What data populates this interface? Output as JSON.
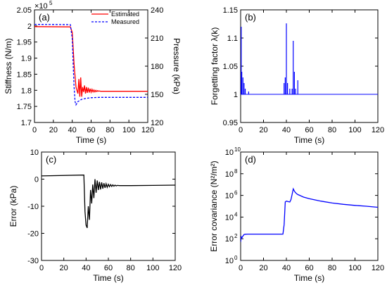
{
  "chart_data": [
    {
      "type": "line",
      "panel_label": "(a)",
      "xlabel": "Time (s)",
      "ylabel": "Stiffness (N/m)",
      "ylabel_right": "Pressure (kPa)",
      "xlim": [
        0,
        120
      ],
      "ylim": [
        1.7,
        2.05
      ],
      "ylim_right": [
        120,
        240
      ],
      "y_exponent_label": "×10",
      "y_exponent": "5",
      "xticks": [
        "0",
        "20",
        "40",
        "60",
        "80",
        "100",
        "120"
      ],
      "yticks": [
        "1.7",
        "1.75",
        "1.8",
        "1.85",
        "1.9",
        "1.95",
        "2",
        "2.05"
      ],
      "yticks_right": [
        "120",
        "150",
        "180",
        "210",
        "240"
      ],
      "legend_position": "top-right",
      "series": [
        {
          "name": "Estimated",
          "color": "#ff0000",
          "style": "solid",
          "x": [
            0,
            38,
            40,
            41,
            42,
            44,
            46,
            47,
            48,
            49,
            50,
            51,
            52,
            53,
            54,
            55,
            56,
            57,
            58,
            59,
            60,
            61,
            62,
            63,
            64,
            65,
            66,
            67,
            68,
            69,
            70,
            72,
            74,
            76,
            78,
            80,
            90,
            100,
            110,
            120
          ],
          "y": [
            1.998,
            1.997,
            1.98,
            1.93,
            1.88,
            1.81,
            1.79,
            1.835,
            1.78,
            1.84,
            1.78,
            1.81,
            1.795,
            1.815,
            1.79,
            1.81,
            1.792,
            1.808,
            1.793,
            1.805,
            1.794,
            1.803,
            1.795,
            1.801,
            1.795,
            1.8,
            1.796,
            1.799,
            1.797,
            1.798,
            1.797,
            1.797,
            1.797,
            1.797,
            1.797,
            1.797,
            1.797,
            1.797,
            1.797,
            1.797
          ]
        },
        {
          "name": "Measured",
          "color": "#0000ff",
          "style": "dashed",
          "x": [
            0,
            38,
            40,
            41,
            42,
            43,
            44,
            46,
            50,
            55,
            60,
            70,
            120
          ],
          "y": [
            2.005,
            2.004,
            1.96,
            1.88,
            1.81,
            1.765,
            1.755,
            1.765,
            1.772,
            1.775,
            1.777,
            1.778,
            1.778
          ]
        }
      ]
    },
    {
      "type": "line",
      "panel_label": "(b)",
      "xlabel": "Time (s)",
      "ylabel": "Forgetting factor λ(k)",
      "xlim": [
        0,
        120
      ],
      "ylim": [
        0.95,
        1.15
      ],
      "xticks": [
        "0",
        "20",
        "40",
        "60",
        "80",
        "100",
        "120"
      ],
      "yticks": [
        "0.95",
        "1",
        "1.05",
        "1.1",
        "1.15"
      ],
      "series": [
        {
          "color": "#0000ff",
          "style": "spikes",
          "baseline": 1.0,
          "spikes": [
            [
              0.5,
              1.12
            ],
            [
              1,
              1.04
            ],
            [
              2,
              1.03
            ],
            [
              3,
              1.02
            ],
            [
              4,
              1.01
            ],
            [
              7,
              1.005
            ],
            [
              38,
              1.02
            ],
            [
              39,
              1.03
            ],
            [
              40,
              1.126
            ],
            [
              41,
              1.02
            ],
            [
              43,
              1.01
            ],
            [
              45,
              1.01
            ],
            [
              46,
              1.095
            ],
            [
              47,
              1.04
            ],
            [
              48,
              1.01
            ],
            [
              50,
              1.025
            ]
          ]
        }
      ]
    },
    {
      "type": "line",
      "panel_label": "(c)",
      "xlabel": "Time (s)",
      "ylabel": "Error (kPa)",
      "xlim": [
        0,
        120
      ],
      "ylim": [
        -30,
        10
      ],
      "xticks": [
        "0",
        "20",
        "40",
        "60",
        "80",
        "100",
        "120"
      ],
      "yticks": [
        "-30",
        "-20",
        "-10",
        "0",
        "10"
      ],
      "series": [
        {
          "color": "#000000",
          "style": "solid",
          "x": [
            0,
            38,
            39,
            40,
            41,
            42,
            43,
            44,
            45,
            46,
            47,
            48,
            49,
            50,
            51,
            52,
            53,
            54,
            55,
            56,
            57,
            58,
            59,
            60,
            61,
            62,
            63,
            64,
            65,
            66,
            67,
            68,
            70,
            80,
            100,
            120
          ],
          "y": [
            1.2,
            1.5,
            -12,
            -17,
            -18,
            -10,
            -15,
            -4,
            -9,
            -2,
            -7,
            0,
            -5,
            -0.5,
            -4,
            -1,
            -3.8,
            -1.2,
            -3.5,
            -1.5,
            -3.2,
            -1.7,
            -3,
            -1.9,
            -2.8,
            -2,
            -2.7,
            -2.1,
            -2.6,
            -2.2,
            -2.5,
            -2.3,
            -2.4,
            -2.4,
            -2.3,
            -2.2
          ]
        }
      ]
    },
    {
      "type": "line",
      "panel_label": "(d)",
      "xlabel": "Time (s)",
      "ylabel": "Error covariance (N²/m²)",
      "xlim": [
        0,
        120
      ],
      "y_scale": "log",
      "ylim": [
        1,
        10000000000
      ],
      "xticks": [
        "0",
        "20",
        "40",
        "60",
        "80",
        "100",
        "120"
      ],
      "yticks": [
        "10",
        "10",
        "10",
        "10",
        "10",
        "10"
      ],
      "ytick_exponents": [
        "0",
        "2",
        "4",
        "6",
        "8",
        "10"
      ],
      "series": [
        {
          "color": "#0000ff",
          "style": "solid",
          "x": [
            0,
            0.5,
            1,
            2,
            3,
            4,
            6,
            10,
            20,
            37,
            38,
            39,
            40,
            41,
            42,
            43,
            44,
            45,
            46,
            47,
            48,
            49,
            50,
            55,
            60,
            70,
            80,
            90,
            100,
            110,
            120
          ],
          "y": [
            50,
            150,
            120,
            180,
            250,
            260,
            270,
            270,
            270,
            270,
            2000,
            250000,
            300000,
            280000,
            260000,
            250000,
            400000,
            1200000,
            4000000,
            2500000,
            1800000,
            1400000,
            1200000,
            700000,
            500000,
            300000,
            200000,
            150000,
            120000,
            100000,
            80000
          ]
        }
      ]
    }
  ]
}
